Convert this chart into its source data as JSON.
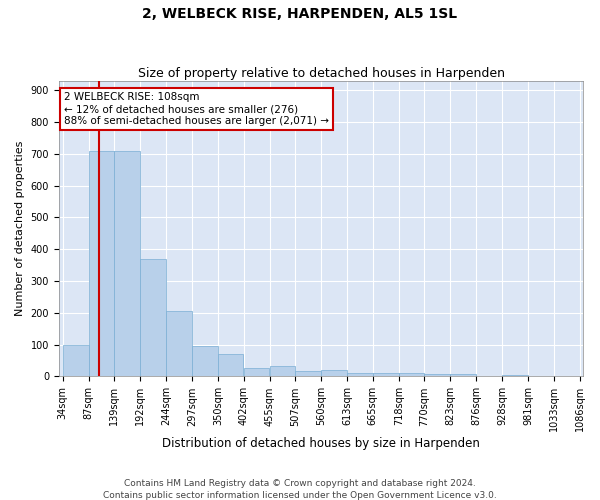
{
  "title": "2, WELBECK RISE, HARPENDEN, AL5 1SL",
  "subtitle": "Size of property relative to detached houses in Harpenden",
  "xlabel": "Distribution of detached houses by size in Harpenden",
  "ylabel": "Number of detached properties",
  "annotation_line1": "2 WELBECK RISE: 108sqm",
  "annotation_line2": "← 12% of detached houses are smaller (276)",
  "annotation_line3": "88% of semi-detached houses are larger (2,071) →",
  "footer_line1": "Contains HM Land Registry data © Crown copyright and database right 2024.",
  "footer_line2": "Contains public sector information licensed under the Open Government Licence v3.0.",
  "bar_edges": [
    34,
    87,
    139,
    192,
    244,
    297,
    350,
    402,
    455,
    507,
    560,
    613,
    665,
    718,
    770,
    823,
    876,
    928,
    981,
    1033,
    1086
  ],
  "bar_heights": [
    100,
    710,
    710,
    370,
    205,
    95,
    72,
    28,
    32,
    18,
    20,
    10,
    10,
    12,
    8,
    7,
    0,
    5,
    0,
    0,
    0
  ],
  "bar_color": "#b8d0ea",
  "bar_edge_color": "#7aaed4",
  "vline_x": 108,
  "vline_color": "#cc0000",
  "annotation_box_color": "#cc0000",
  "fig_background": "#ffffff",
  "plot_background": "#dce6f5",
  "ylim": [
    0,
    930
  ],
  "yticks": [
    0,
    100,
    200,
    300,
    400,
    500,
    600,
    700,
    800,
    900
  ],
  "grid_color": "#ffffff",
  "title_fontsize": 10,
  "subtitle_fontsize": 9,
  "xlabel_fontsize": 8.5,
  "ylabel_fontsize": 8,
  "tick_fontsize": 7,
  "footer_fontsize": 6.5,
  "bin_labels": [
    "34sqm",
    "87sqm",
    "139sqm",
    "192sqm",
    "244sqm",
    "297sqm",
    "350sqm",
    "402sqm",
    "455sqm",
    "507sqm",
    "560sqm",
    "613sqm",
    "665sqm",
    "718sqm",
    "770sqm",
    "823sqm",
    "876sqm",
    "928sqm",
    "981sqm",
    "1033sqm",
    "1086sqm"
  ]
}
